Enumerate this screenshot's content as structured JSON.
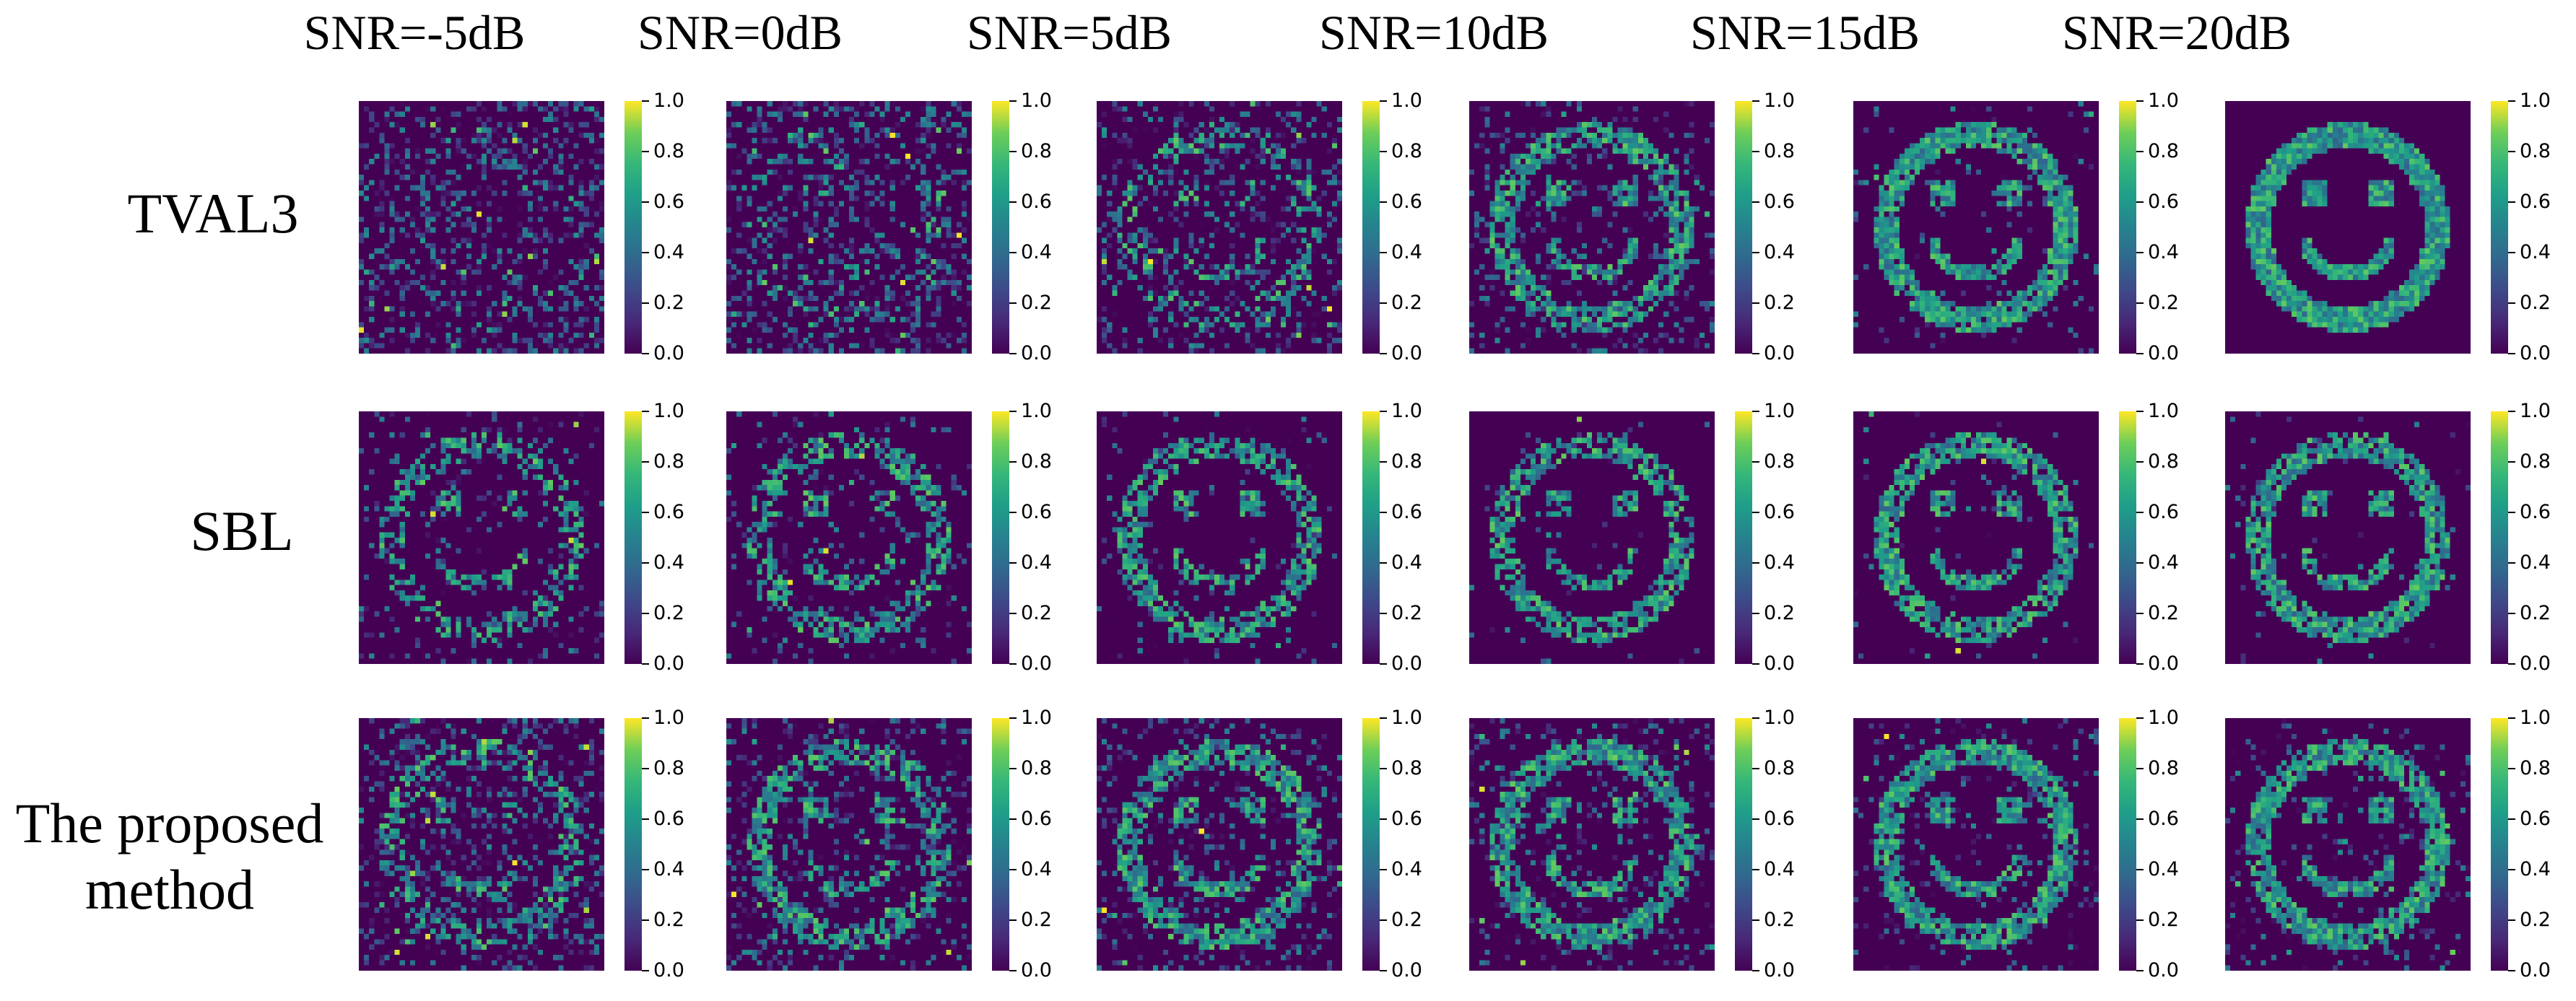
{
  "columns": [
    "SNR=-5dB",
    "SNR=0dB",
    "SNR=5dB",
    "SNR=10dB",
    "SNR=15dB",
    "SNR=20dB"
  ],
  "rows": [
    {
      "label_lines": [
        "TVAL3"
      ]
    },
    {
      "label_lines": [
        "SBL"
      ]
    },
    {
      "label_lines": [
        "The proposed",
        "method"
      ]
    }
  ],
  "colorbar": {
    "ticks": [
      "0.0",
      "0.2",
      "0.4",
      "0.6",
      "0.8",
      "1.0"
    ],
    "colormap": [
      "#440154",
      "#482878",
      "#3e4989",
      "#31688e",
      "#26828e",
      "#1f9e89",
      "#35b779",
      "#6ece58",
      "#fde725"
    ]
  },
  "colors": {
    "background": "#ffffff",
    "map_background": "#440154"
  }
}
